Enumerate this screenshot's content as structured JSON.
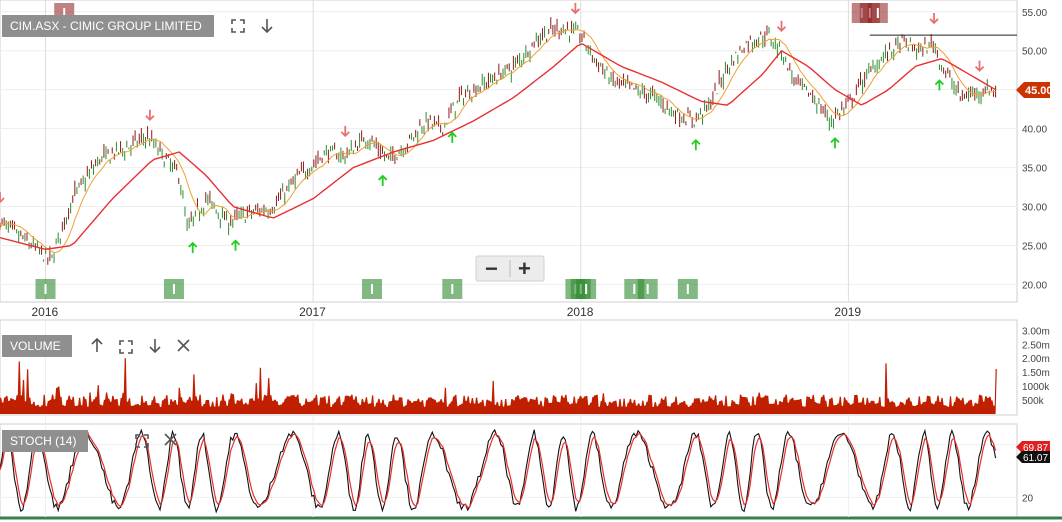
{
  "title": "CIM.ASX - CIMIC GROUP LIMITED",
  "colors": {
    "up_candle": "#2e8b2e",
    "down_candle": "#8b1a1a",
    "ma_long": "#e83030",
    "ma_short": "#f0a030",
    "volume": "#c02000",
    "stoch_k": "#111111",
    "stoch_d": "#e83030",
    "price_badge": "#cc3300",
    "green_marker": "#2e8b2e",
    "red_marker": "#8b1a1a",
    "buy_arrow": "#22cc22",
    "sell_arrow": "#e87070"
  },
  "panels": {
    "volume_label": "VOLUME",
    "stoch_label": "STOCH (14)"
  },
  "zoom": {
    "minus": "−",
    "plus": "+"
  },
  "current_price_label": "45.00",
  "stoch_badges": [
    "69.87",
    "61.07"
  ],
  "chart_data": [
    {
      "type": "line",
      "name": "price",
      "title": "CIM.ASX - CIMIC GROUP LIMITED",
      "x_ticks": [
        "2016",
        "2017",
        "2018",
        "2019"
      ],
      "y_ticks": [
        "20.00",
        "25.00",
        "30.00",
        "35.00",
        "40.00",
        "45.00",
        "50.00",
        "55.00"
      ],
      "ylim": [
        18,
        56
      ],
      "xlim": [
        2015.83,
        2019.63
      ],
      "series": [
        {
          "x": [
            2015.83,
            2015.95,
            2016.02,
            2016.1,
            2016.2,
            2016.3,
            2016.38,
            2016.45,
            2016.5,
            2016.53,
            2016.6,
            2016.68,
            2016.75,
            2016.85,
            2016.95,
            2017.05,
            2017.12,
            2017.2,
            2017.28,
            2017.35,
            2017.42,
            2017.48,
            2017.55,
            2017.65,
            2017.75,
            2017.85,
            2017.93,
            2018.0,
            2018.05,
            2018.12,
            2018.2,
            2018.28,
            2018.35,
            2018.42,
            2018.48,
            2018.55,
            2018.62,
            2018.7,
            2018.75,
            2018.8,
            2018.87,
            2018.93,
            2019.0,
            2019.05,
            2019.12,
            2019.2,
            2019.27,
            2019.32,
            2019.35,
            2019.42,
            2019.5,
            2019.55
          ],
          "values": [
            28,
            25,
            23,
            31,
            36,
            37.5,
            39,
            36,
            34,
            27,
            31,
            28,
            29,
            30,
            34,
            37,
            36.5,
            39,
            36,
            38,
            41,
            40,
            44,
            46,
            48,
            52,
            53,
            52,
            49,
            46,
            45,
            44,
            42,
            41,
            43,
            48,
            51,
            52,
            50,
            46,
            44,
            41,
            43,
            46,
            49,
            51,
            50,
            51,
            48,
            44,
            45,
            45
          ]
        },
        {
          "name": "ma_long",
          "x": [
            2015.83,
            2016.0,
            2016.1,
            2016.25,
            2016.4,
            2016.5,
            2016.6,
            2016.7,
            2016.85,
            2017.0,
            2017.15,
            2017.3,
            2017.45,
            2017.6,
            2017.75,
            2017.9,
            2018.0,
            2018.15,
            2018.3,
            2018.45,
            2018.55,
            2018.68,
            2018.75,
            2018.85,
            2018.95,
            2019.05,
            2019.15,
            2019.25,
            2019.35,
            2019.45,
            2019.55
          ],
          "values": [
            26,
            24.5,
            25,
            31,
            36,
            37,
            34,
            30,
            28.5,
            31,
            35,
            37,
            38.5,
            41,
            44,
            48,
            51,
            48,
            46,
            43.5,
            43,
            47,
            50,
            48,
            45,
            43,
            45,
            48,
            49,
            47,
            45
          ]
        },
        {
          "name": "resistance_line",
          "x": [
            2019.08,
            2019.63
          ],
          "values": [
            52,
            52
          ]
        }
      ],
      "markers": {
        "buy_arrows_x": [
          2016.55,
          2016.71,
          2017.26,
          2017.52,
          2018.43,
          2018.95,
          2019.34
        ],
        "sell_arrows_x": [
          2015.83,
          2016.39,
          2017.12,
          2017.98,
          2018.75,
          2019.32,
          2019.49
        ],
        "green_bars_x": [
          2016.0,
          2016.48,
          2017.22,
          2017.52,
          2017.98,
          2018.0,
          2018.02,
          2018.2,
          2018.25,
          2018.4
        ],
        "red_bars_x": [
          2016.07,
          2019.05,
          2019.08,
          2019.11
        ]
      }
    },
    {
      "type": "bar",
      "name": "volume",
      "title": "VOLUME",
      "y_ticks": [
        "3.00m",
        "2.50m",
        "2.00m",
        "1.50m",
        "1000k",
        "500k"
      ],
      "ylim": [
        0,
        3.3
      ],
      "notes": "daily volume mostly 0.3m–0.8m with spikes up to ~3.2m"
    },
    {
      "type": "line",
      "name": "stoch",
      "title": "STOCH (14)",
      "y_ticks": [
        "80",
        "20"
      ],
      "ylim": [
        0,
        100
      ]
    }
  ]
}
